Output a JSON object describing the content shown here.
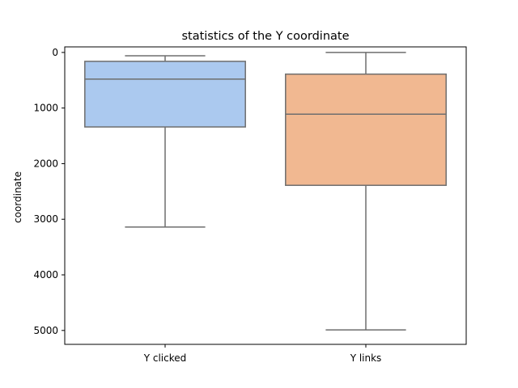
{
  "chart_data": {
    "type": "box",
    "title": "statistics of the Y coordinate",
    "xlabel": "",
    "ylabel": "coordinate",
    "y_inverted": true,
    "ylim": [
      5250,
      -100
    ],
    "yticks": [
      0,
      1000,
      2000,
      3000,
      4000,
      5000
    ],
    "grid": false,
    "categories": [
      "Y clicked",
      "Y links"
    ],
    "series": [
      {
        "whisker_low": 60,
        "q1": 160,
        "median": 480,
        "q3": 1340,
        "whisker_high": 3140,
        "color": "#abc9ef"
      },
      {
        "whisker_low": 0,
        "q1": 390,
        "median": 1110,
        "q3": 2390,
        "whisker_high": 4990,
        "color": "#f1b891"
      }
    ],
    "line_color": "#6e6e6e"
  }
}
